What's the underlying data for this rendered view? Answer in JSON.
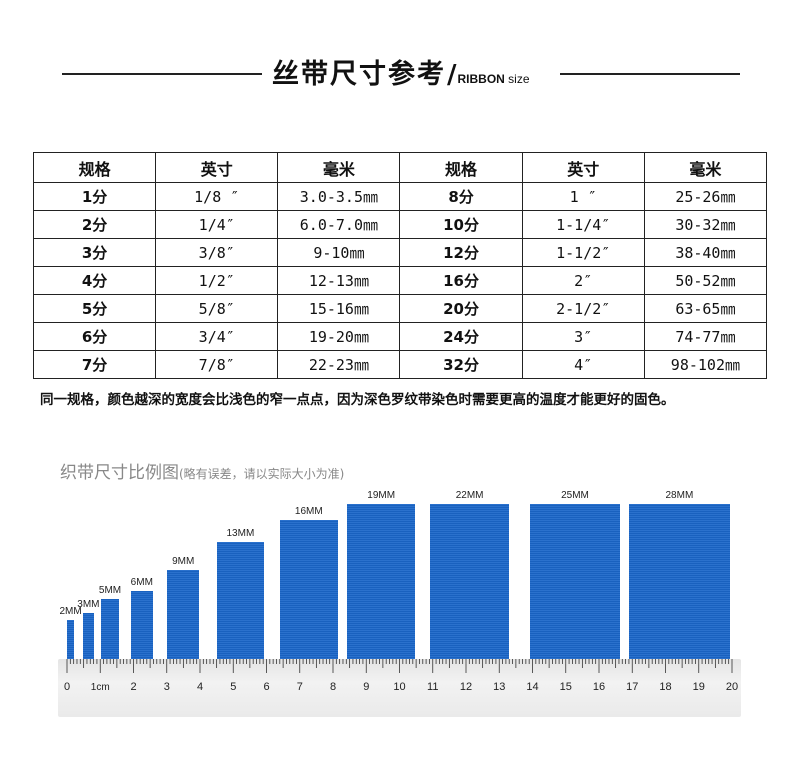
{
  "header": {
    "title_zh": "丝带尺寸参考",
    "slash": "/",
    "title_en": "RIBBON",
    "title_en_suffix": " size"
  },
  "table": {
    "headers": [
      "规格",
      "英寸",
      "毫米",
      "规格",
      "英寸",
      "毫米"
    ],
    "rows": [
      [
        "1分",
        "1/8 ″",
        "3.0-3.5㎜",
        "8分",
        "1 ″",
        "25-26㎜"
      ],
      [
        "2分",
        "1/4″",
        "6.0-7.0㎜",
        "10分",
        "1-1/4″",
        "30-32㎜"
      ],
      [
        "3分",
        "3/8″",
        "9-10㎜",
        "12分",
        "1-1/2″",
        "38-40㎜"
      ],
      [
        "4分",
        "1/2″",
        "12-13㎜",
        "16分",
        "2″",
        "50-52㎜"
      ],
      [
        "5分",
        "5/8″",
        "15-16㎜",
        "20分",
        "2-1/2″",
        "63-65㎜"
      ],
      [
        "6分",
        "3/4″",
        "19-20㎜",
        "24分",
        "3″",
        "74-77㎜"
      ],
      [
        "7分",
        "7/8″",
        "22-23㎜",
        "32分",
        "4″",
        "98-102㎜"
      ]
    ]
  },
  "note": "同一规格，颜色越深的宽度会比浅色的窄一点点，因为深色罗纹带染色时需要更高的温度才能更好的固色。",
  "compare": {
    "title": "织带尺寸比例图",
    "subtitle": "(略有误差，请以实际大小为准)",
    "ribbon_color": "#1a66c9",
    "ribbons": [
      {
        "label": "2MM",
        "width_mm": 2
      },
      {
        "label": "3MM",
        "width_mm": 3
      },
      {
        "label": "5MM",
        "width_mm": 5
      },
      {
        "label": "6MM",
        "width_mm": 6
      },
      {
        "label": "9MM",
        "width_mm": 9
      },
      {
        "label": "13MM",
        "width_mm": 13
      },
      {
        "label": "16MM",
        "width_mm": 16
      },
      {
        "label": "19MM",
        "width_mm": 19
      },
      {
        "label": "22MM",
        "width_mm": 22
      },
      {
        "label": "25MM",
        "width_mm": 25
      },
      {
        "label": "28MM",
        "width_mm": 28
      }
    ],
    "ruler_labels": [
      "0",
      "1cm",
      "2",
      "3",
      "4",
      "5",
      "6",
      "7",
      "8",
      "9",
      "10",
      "11",
      "12",
      "13",
      "14",
      "15",
      "16",
      "17",
      "18",
      "19",
      "20"
    ]
  }
}
